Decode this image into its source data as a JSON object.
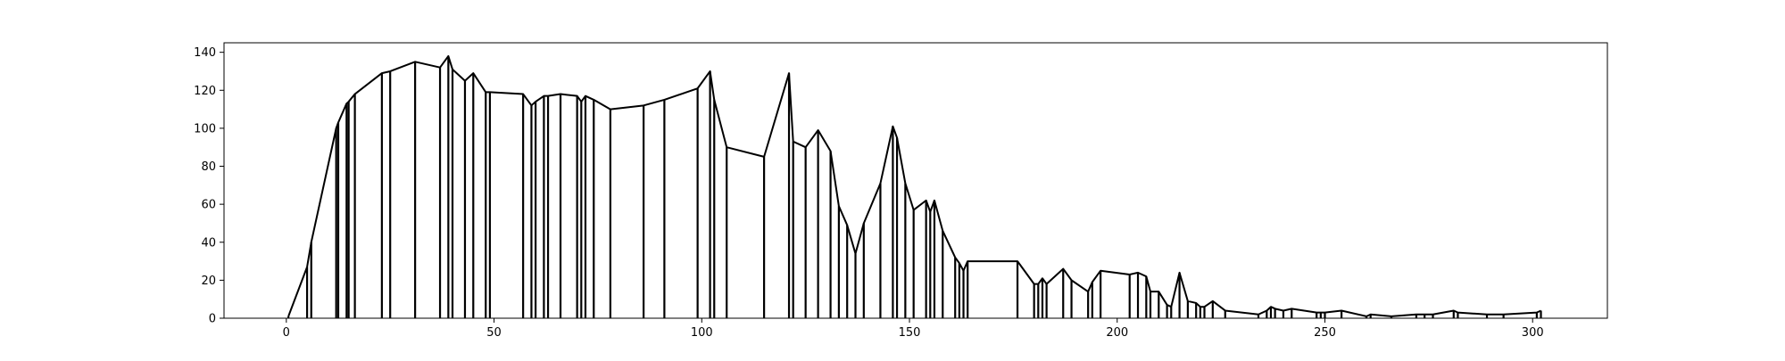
{
  "chart_data": {
    "type": "line",
    "title": "",
    "xlabel": "",
    "ylabel": "",
    "xlim": [
      -15,
      318
    ],
    "ylim": [
      0,
      145
    ],
    "xticks": [
      0,
      50,
      100,
      150,
      200,
      250,
      300
    ],
    "yticks": [
      0,
      20,
      40,
      60,
      80,
      100,
      120,
      140
    ],
    "grid": false,
    "legend": "none",
    "line_color": "#000000",
    "drop_lines": true,
    "series": [
      {
        "x": [
          0.5,
          5,
          6,
          12,
          12.5,
          14.5,
          15,
          16.5,
          23,
          25,
          31,
          37,
          39,
          40,
          43,
          45,
          48,
          49,
          57,
          59,
          60,
          62,
          63,
          66,
          70,
          71,
          72,
          74,
          78,
          86,
          91,
          99,
          102,
          103,
          106,
          115,
          121,
          122,
          125,
          128,
          131,
          133,
          135,
          137,
          139,
          143,
          146,
          147,
          149,
          151,
          154,
          155,
          156,
          158,
          161,
          162,
          163,
          164,
          176,
          180,
          181,
          182,
          183,
          187,
          189,
          193,
          194,
          196,
          203,
          205,
          207,
          208,
          210,
          212,
          213,
          215,
          217,
          219,
          220,
          221,
          223,
          226,
          234,
          236,
          237,
          238,
          240,
          242,
          248,
          249,
          250,
          254,
          260,
          261,
          266,
          272,
          274,
          276,
          281,
          282,
          289,
          293,
          301,
          302
        ],
        "values": [
          1,
          27,
          40,
          100,
          103,
          113,
          114,
          118,
          129,
          130,
          135,
          132,
          138,
          131,
          125,
          129,
          119,
          119,
          118,
          112,
          114,
          117,
          117,
          118,
          117,
          114,
          117,
          115,
          110,
          112,
          115,
          121,
          130,
          115,
          90,
          85,
          129,
          93,
          90,
          99,
          88,
          59,
          49,
          34,
          50,
          71,
          101,
          95,
          71,
          57,
          62,
          56,
          62,
          46,
          32,
          29,
          25,
          30,
          30,
          18,
          18,
          21,
          18,
          26,
          20,
          14,
          19,
          25,
          23,
          24,
          22,
          14,
          14,
          7,
          6,
          24,
          9,
          8,
          6,
          6,
          9,
          4,
          2,
          4,
          6,
          5,
          4,
          5,
          3,
          3,
          3,
          4,
          1,
          2,
          1,
          2,
          2,
          2,
          4,
          3,
          2,
          2,
          3,
          4
        ]
      }
    ]
  }
}
